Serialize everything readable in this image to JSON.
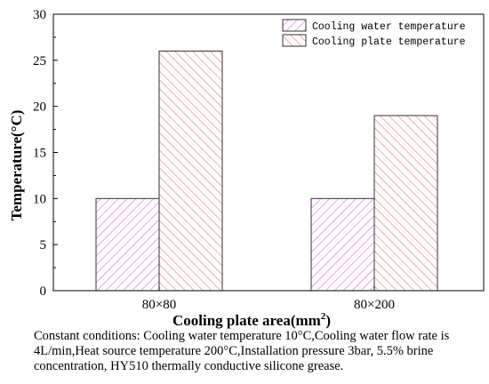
{
  "chart_data": {
    "type": "bar",
    "categories": [
      "80×80",
      "80×200"
    ],
    "series": [
      {
        "name": "Cooling water temperature",
        "values": [
          10,
          10
        ],
        "color": "#d946ef"
      },
      {
        "name": "Cooling plate temperature",
        "values": [
          26,
          19
        ],
        "color": "#e06060"
      }
    ],
    "xlabel": "Cooling plate area(mm",
    "xlabel_sup": "2",
    "xlabel_close": ")",
    "ylabel": "Temperature(°C)",
    "ylim": [
      0,
      30
    ],
    "yticks": [
      0,
      5,
      10,
      15,
      20,
      25,
      30
    ],
    "grid": false,
    "legend_position": "top-right"
  },
  "caption": "Constant conditions: Cooling water temperature 10°C,Cooling water flow rate is 4L/min,Heat source temperature 200°C,Installation pressure 3bar, 5.5% brine concentration, HY510 thermally conductive silicone grease."
}
